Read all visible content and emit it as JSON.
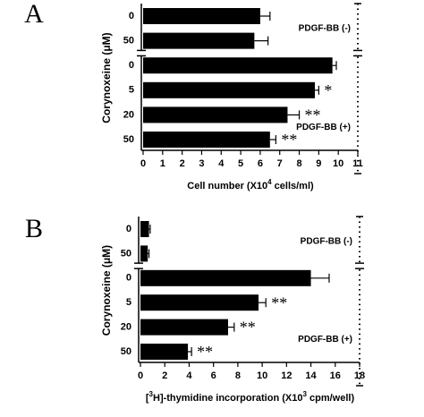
{
  "chart_data": [
    {
      "type": "bar",
      "panel": "A",
      "ylabel": "Corynoxeine (μM)",
      "xlabel": {
        "text": "Cell number (X10",
        "sup": "4",
        "tail": " cells/ml)"
      },
      "categories": [
        "0",
        "50",
        "0",
        "5",
        "20",
        "50"
      ],
      "values": [
        6.0,
        5.7,
        9.7,
        8.8,
        7.4,
        6.5
      ],
      "errors": [
        0.5,
        0.7,
        0.2,
        0.2,
        0.6,
        0.3
      ],
      "significance": [
        null,
        null,
        null,
        "*",
        "**",
        "**"
      ],
      "group_labels": [
        "PDGF-BB (-)",
        "PDGF-BB (+)"
      ],
      "color": "#000000",
      "xlim": [
        0,
        11
      ],
      "xticks": [
        0,
        1,
        2,
        3,
        4,
        5,
        6,
        7,
        8,
        9,
        10,
        11
      ]
    },
    {
      "type": "bar",
      "panel": "B",
      "ylabel": "Corynoxeine (μM)",
      "xlabel": {
        "head": "[",
        "sup": "3",
        "text": "H]-thymidine incorporation (X10",
        "sup2": "3",
        "tail": " cpm/well)"
      },
      "categories": [
        "0",
        "50",
        "0",
        "5",
        "20",
        "50"
      ],
      "values": [
        0.7,
        0.6,
        14.0,
        9.7,
        7.2,
        3.9
      ],
      "errors": [
        0.1,
        0.1,
        1.5,
        0.6,
        0.5,
        0.3
      ],
      "significance": [
        null,
        null,
        null,
        "**",
        "**",
        "**"
      ],
      "group_labels": [
        "PDGF-BB (-)",
        "PDGF-BB (+)"
      ],
      "color": "#000000",
      "xlim": [
        0,
        18
      ],
      "xticks": [
        0,
        2,
        4,
        6,
        8,
        10,
        12,
        14,
        16,
        18
      ]
    }
  ]
}
